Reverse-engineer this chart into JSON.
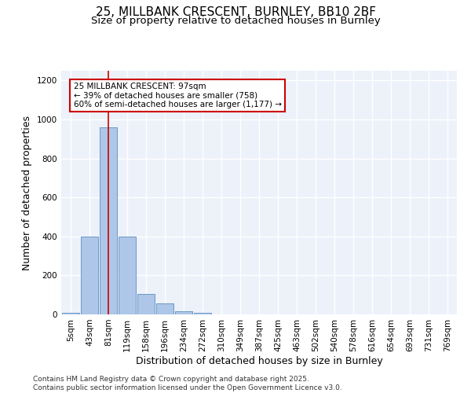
{
  "title_line1": "25, MILLBANK CRESCENT, BURNLEY, BB10 2BF",
  "title_line2": "Size of property relative to detached houses in Burnley",
  "xlabel": "Distribution of detached houses by size in Burnley",
  "ylabel": "Number of detached properties",
  "bar_color": "#aec6e8",
  "bar_edge_color": "#5a8fc0",
  "background_color": "#edf1fa",
  "grid_color": "#ffffff",
  "categories": [
    "5sqm",
    "43sqm",
    "81sqm",
    "119sqm",
    "158sqm",
    "196sqm",
    "234sqm",
    "272sqm",
    "310sqm",
    "349sqm",
    "387sqm",
    "425sqm",
    "463sqm",
    "502sqm",
    "540sqm",
    "578sqm",
    "616sqm",
    "654sqm",
    "693sqm",
    "731sqm",
    "769sqm"
  ],
  "values": [
    10,
    400,
    960,
    400,
    105,
    55,
    15,
    8,
    0,
    0,
    2,
    0,
    0,
    0,
    0,
    0,
    0,
    0,
    0,
    0,
    0
  ],
  "ylim": [
    0,
    1250
  ],
  "yticks": [
    0,
    200,
    400,
    600,
    800,
    1000,
    1200
  ],
  "property_line_x": 2,
  "annotation_text": "25 MILLBANK CRESCENT: 97sqm\n← 39% of detached houses are smaller (758)\n60% of semi-detached houses are larger (1,177) →",
  "annotation_box_color": "#cc0000",
  "annotation_box_facecolor": "#ffffff",
  "footer_text": "Contains HM Land Registry data © Crown copyright and database right 2025.\nContains public sector information licensed under the Open Government Licence v3.0.",
  "title_fontsize": 11,
  "subtitle_fontsize": 9.5,
  "tick_fontsize": 7.5,
  "ylabel_fontsize": 9,
  "xlabel_fontsize": 9,
  "footer_fontsize": 6.5
}
